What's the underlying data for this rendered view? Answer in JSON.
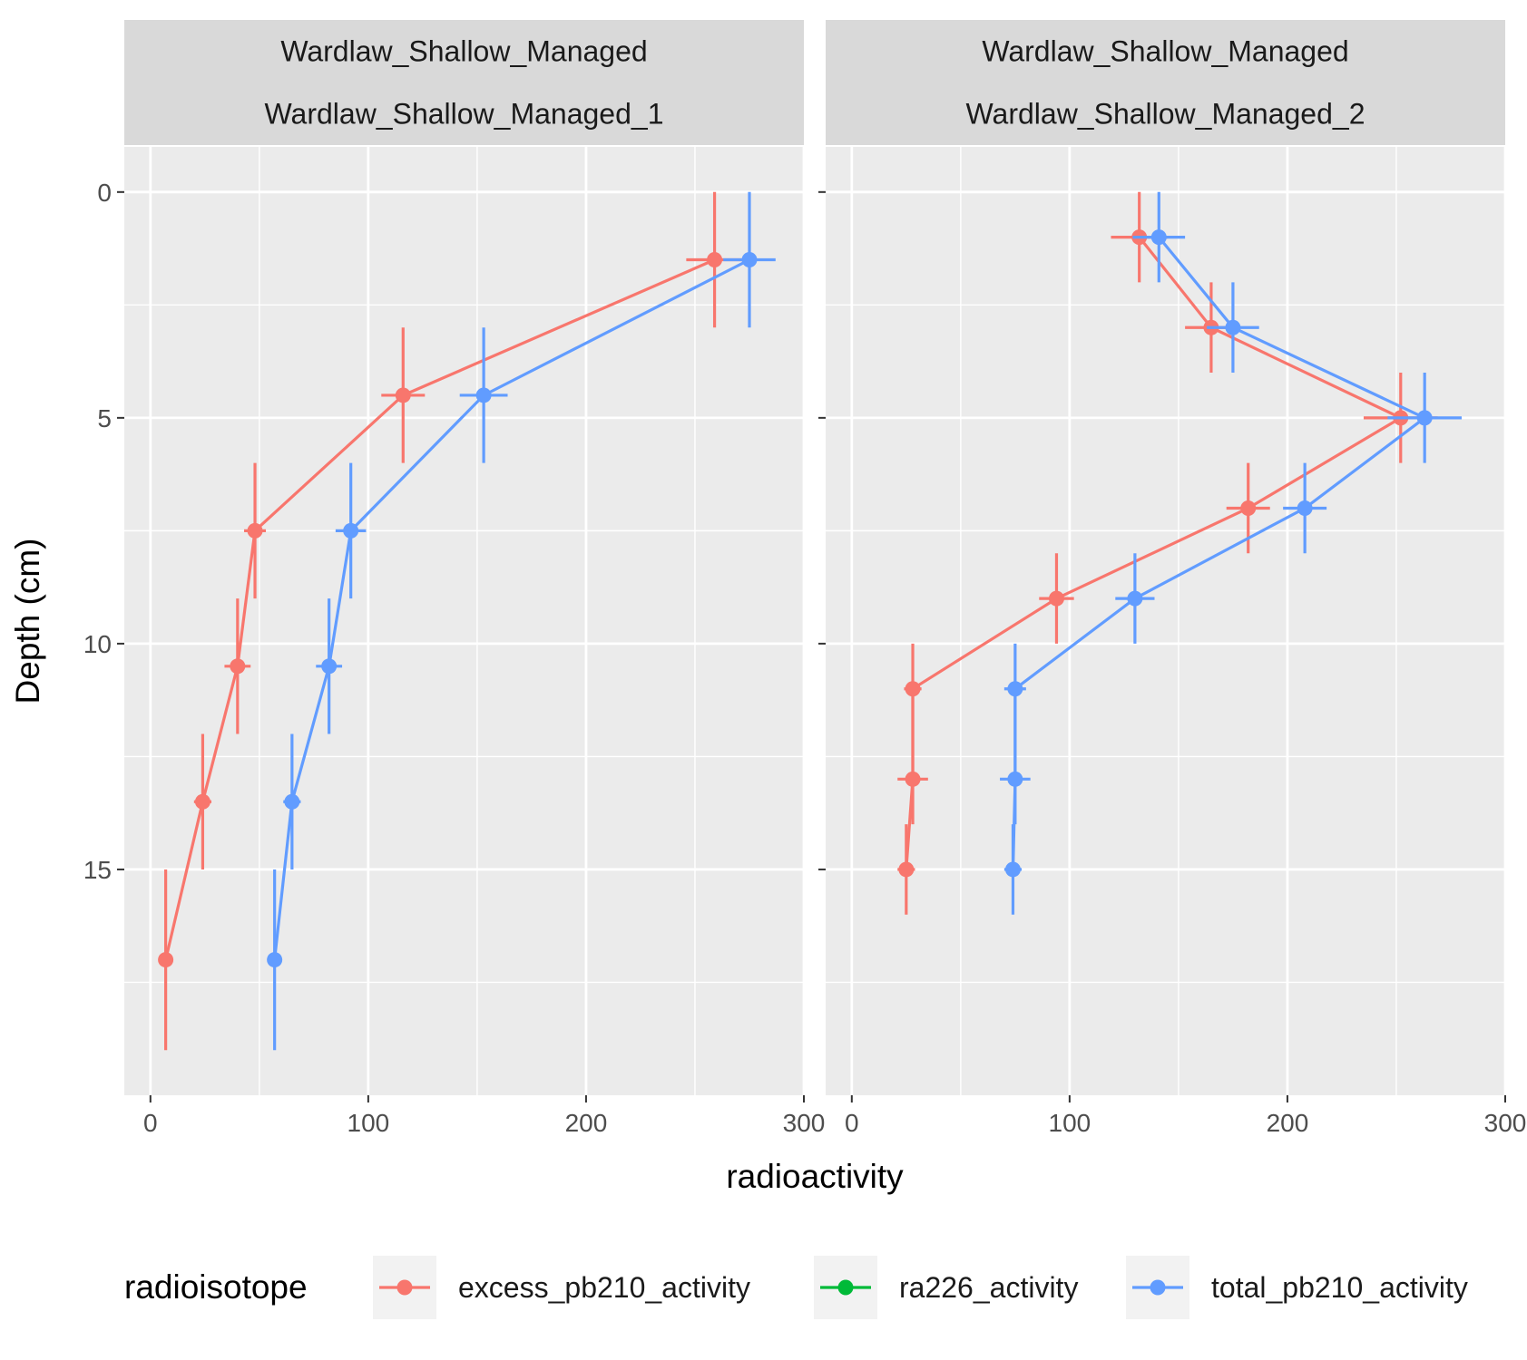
{
  "chart_data": {
    "type": "line",
    "xlabel": "radioactivity",
    "ylabel": "Depth (cm)",
    "xlim": [
      -12,
      300
    ],
    "ylim": [
      20,
      -1
    ],
    "y_reversed": true,
    "x_ticks": [
      0,
      100,
      200,
      300
    ],
    "y_ticks": [
      0,
      5,
      10,
      15
    ],
    "grid": true,
    "legend": {
      "title": "radioisotope",
      "position": "bottom",
      "entries": [
        {
          "name": "excess_pb210_activity",
          "color": "#F8766D"
        },
        {
          "name": "ra226_activity",
          "color": "#00BA38"
        },
        {
          "name": "total_pb210_activity",
          "color": "#619CFF"
        }
      ]
    },
    "panels": [
      {
        "strip": [
          "Wardlaw_Shallow_Managed",
          "Wardlaw_Shallow_Managed_1"
        ],
        "series": [
          {
            "name": "excess_pb210_activity",
            "color": "#F8766D",
            "points": [
              {
                "x": 259,
                "y": 1.5,
                "xerr": 13,
                "ymin": 0,
                "ymax": 3
              },
              {
                "x": 116,
                "y": 4.5,
                "xerr": 10,
                "ymin": 3,
                "ymax": 6
              },
              {
                "x": 48,
                "y": 7.5,
                "xerr": 5,
                "ymin": 6,
                "ymax": 9
              },
              {
                "x": 40,
                "y": 10.5,
                "xerr": 6,
                "ymin": 9,
                "ymax": 12
              },
              {
                "x": 24,
                "y": 13.5,
                "xerr": 4,
                "ymin": 12,
                "ymax": 15
              },
              {
                "x": 7,
                "y": 17,
                "xerr": 3,
                "ymin": 15,
                "ymax": 19
              }
            ]
          },
          {
            "name": "total_pb210_activity",
            "color": "#619CFF",
            "points": [
              {
                "x": 275,
                "y": 1.5,
                "xerr": 12,
                "ymin": 0,
                "ymax": 3
              },
              {
                "x": 153,
                "y": 4.5,
                "xerr": 11,
                "ymin": 3,
                "ymax": 6
              },
              {
                "x": 92,
                "y": 7.5,
                "xerr": 7,
                "ymin": 6,
                "ymax": 9
              },
              {
                "x": 82,
                "y": 10.5,
                "xerr": 6,
                "ymin": 9,
                "ymax": 12
              },
              {
                "x": 65,
                "y": 13.5,
                "xerr": 4,
                "ymin": 12,
                "ymax": 15
              },
              {
                "x": 57,
                "y": 17,
                "xerr": 3,
                "ymin": 15,
                "ymax": 19
              }
            ]
          }
        ]
      },
      {
        "strip": [
          "Wardlaw_Shallow_Managed",
          "Wardlaw_Shallow_Managed_2"
        ],
        "series": [
          {
            "name": "excess_pb210_activity",
            "color": "#F8766D",
            "points": [
              {
                "x": 132,
                "y": 1,
                "xerr": 13,
                "ymin": 0,
                "ymax": 2
              },
              {
                "x": 165,
                "y": 3,
                "xerr": 12,
                "ymin": 2,
                "ymax": 4
              },
              {
                "x": 252,
                "y": 5,
                "xerr": 17,
                "ymin": 4,
                "ymax": 6
              },
              {
                "x": 182,
                "y": 7,
                "xerr": 10,
                "ymin": 6,
                "ymax": 8
              },
              {
                "x": 94,
                "y": 9,
                "xerr": 8,
                "ymin": 8,
                "ymax": 10
              },
              {
                "x": 28,
                "y": 11,
                "xerr": 4,
                "ymin": 10,
                "ymax": 12
              },
              {
                "x": 28,
                "y": 13,
                "xerr": 7,
                "ymin": 12,
                "ymax": 14
              },
              {
                "x": 25,
                "y": 15,
                "xerr": 4,
                "ymin": 14,
                "ymax": 16
              }
            ]
          },
          {
            "name": "total_pb210_activity",
            "color": "#619CFF",
            "points": [
              {
                "x": 141,
                "y": 1,
                "xerr": 12,
                "ymin": 0,
                "ymax": 2
              },
              {
                "x": 175,
                "y": 3,
                "xerr": 12,
                "ymin": 2,
                "ymax": 4
              },
              {
                "x": 263,
                "y": 5,
                "xerr": 17,
                "ymin": 4,
                "ymax": 6
              },
              {
                "x": 208,
                "y": 7,
                "xerr": 10,
                "ymin": 6,
                "ymax": 8
              },
              {
                "x": 130,
                "y": 9,
                "xerr": 9,
                "ymin": 8,
                "ymax": 10
              },
              {
                "x": 75,
                "y": 11,
                "xerr": 5,
                "ymin": 10,
                "ymax": 12
              },
              {
                "x": 75,
                "y": 13,
                "xerr": 7,
                "ymin": 12,
                "ymax": 14
              },
              {
                "x": 74,
                "y": 15,
                "xerr": 4,
                "ymin": 14,
                "ymax": 16
              }
            ]
          }
        ]
      }
    ]
  }
}
